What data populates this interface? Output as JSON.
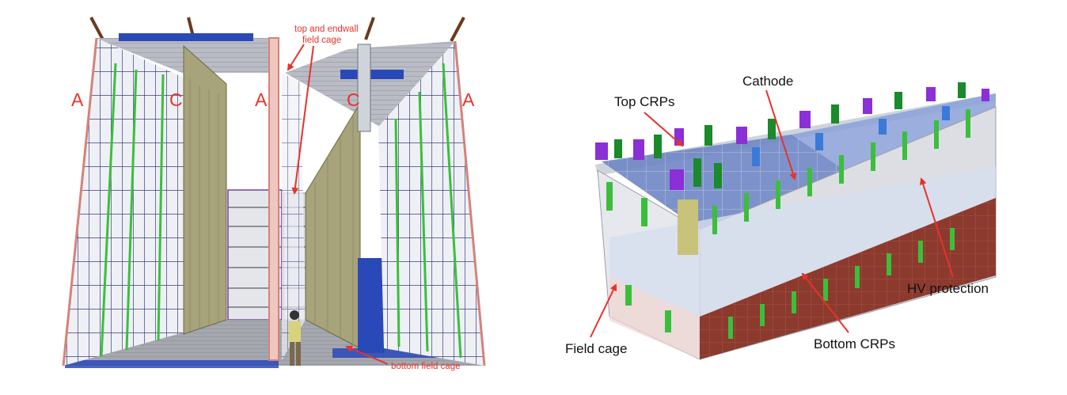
{
  "left_figure": {
    "wall_labels": [
      "A",
      "C",
      "A",
      "C",
      "A"
    ],
    "callout_top": [
      "top and endwall",
      "field cage"
    ],
    "callout_bottom": "bottom field cage",
    "colors": {
      "anode": "#7a3e1c",
      "cathode": "#a7a37a",
      "annotation": "#e8322a",
      "blue_panel": "#2a49b8",
      "green_strip": "#3bbf3b"
    }
  },
  "right_figure": {
    "labels": {
      "cathode": "Cathode",
      "top_crps": "Top CRPs",
      "hv_protection": "HV protection",
      "field_cage": "Field cage",
      "bottom_crps": "Bottom CRPs"
    },
    "colors": {
      "top_deck": "#6f86c4",
      "bottom_crp": "#8c3a2e",
      "chimney_purple": "#8b2fd6",
      "chimney_green": "#1a8a2a",
      "arrow": "#e8322a"
    }
  }
}
